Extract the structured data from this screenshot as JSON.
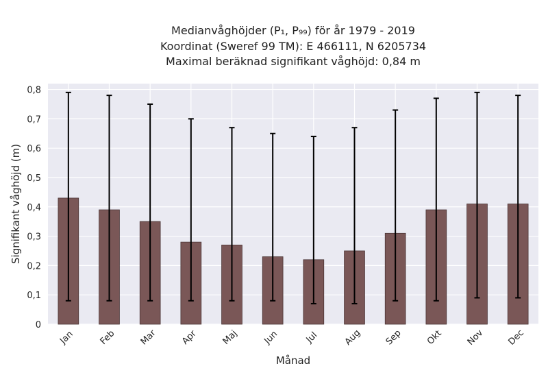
{
  "title_lines": [
    "Medianvåghöjder (P₁, P₉₉) för år 1979 - 2019",
    "Koordinat (Sweref 99 TM): E 466111, N 6205734",
    "Maximal beräknad signifikant våghöjd: 0,84 m"
  ],
  "chart_data": {
    "type": "bar",
    "title": "Medianvåghöjder (P₁, P₉₉) för år 1979 - 2019",
    "xlabel": "Månad",
    "ylabel": "Signifikant våghöjd (m)",
    "ylim": [
      0,
      0.82
    ],
    "yticks": [
      0,
      0.1,
      0.2,
      0.3,
      0.4,
      0.5,
      0.6,
      0.7,
      0.8
    ],
    "ytick_labels": [
      "0",
      "0,1",
      "0,2",
      "0,3",
      "0,4",
      "0,5",
      "0,6",
      "0,7",
      "0,8"
    ],
    "categories": [
      "Jan",
      "Feb",
      "Mar",
      "Apr",
      "Maj",
      "Jun",
      "Jul",
      "Aug",
      "Sep",
      "Okt",
      "Nov",
      "Dec"
    ],
    "values": [
      0.43,
      0.39,
      0.35,
      0.28,
      0.27,
      0.23,
      0.22,
      0.25,
      0.31,
      0.39,
      0.41,
      0.41
    ],
    "p1": [
      0.08,
      0.08,
      0.08,
      0.08,
      0.08,
      0.08,
      0.07,
      0.07,
      0.08,
      0.08,
      0.09,
      0.09
    ],
    "p99": [
      0.79,
      0.78,
      0.75,
      0.7,
      0.67,
      0.65,
      0.64,
      0.67,
      0.73,
      0.77,
      0.79,
      0.78
    ],
    "grid": true,
    "colors": {
      "bar": "#7a5757",
      "bar_edge": "#4a3535",
      "plot_bg": "#eaeaf2",
      "grid": "#ffffff",
      "errorbar": "#000000"
    }
  }
}
